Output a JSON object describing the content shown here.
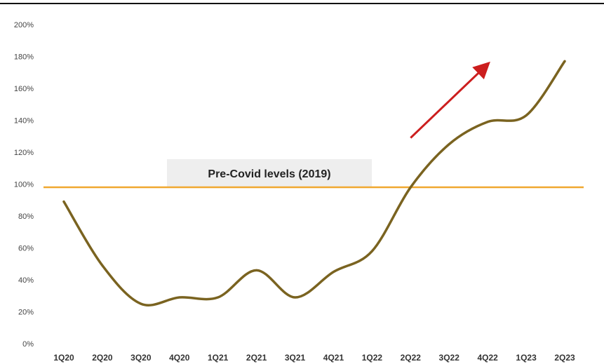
{
  "chart_data": {
    "type": "line",
    "categories": [
      "1Q20",
      "2Q20",
      "3Q20",
      "4Q20",
      "1Q21",
      "2Q21",
      "3Q21",
      "4Q21",
      "1Q22",
      "2Q22",
      "3Q22",
      "4Q22",
      "1Q23",
      "2Q23"
    ],
    "series": [
      {
        "values": [
          89,
          49,
          25,
          29,
          29,
          46,
          29,
          45,
          58,
          98,
          125,
          139,
          143,
          177
        ]
      }
    ],
    "yticks": [
      "0%",
      "20%",
      "40%",
      "60%",
      "80%",
      "100%",
      "120%",
      "140%",
      "160%",
      "180%",
      "200%"
    ],
    "ylim": [
      0,
      200
    ],
    "reference_line": {
      "value": 98,
      "label": "Pre-Covid levels (2019)"
    },
    "trend_arrow": {
      "from": {
        "x": 9.0,
        "y": 129
      },
      "to": {
        "x": 10.95,
        "y": 174
      }
    },
    "colors": {
      "series": "#7a6320",
      "reference": "#f0a830",
      "arrow": "#cc1e1e"
    },
    "grid": false,
    "legend": "none"
  }
}
